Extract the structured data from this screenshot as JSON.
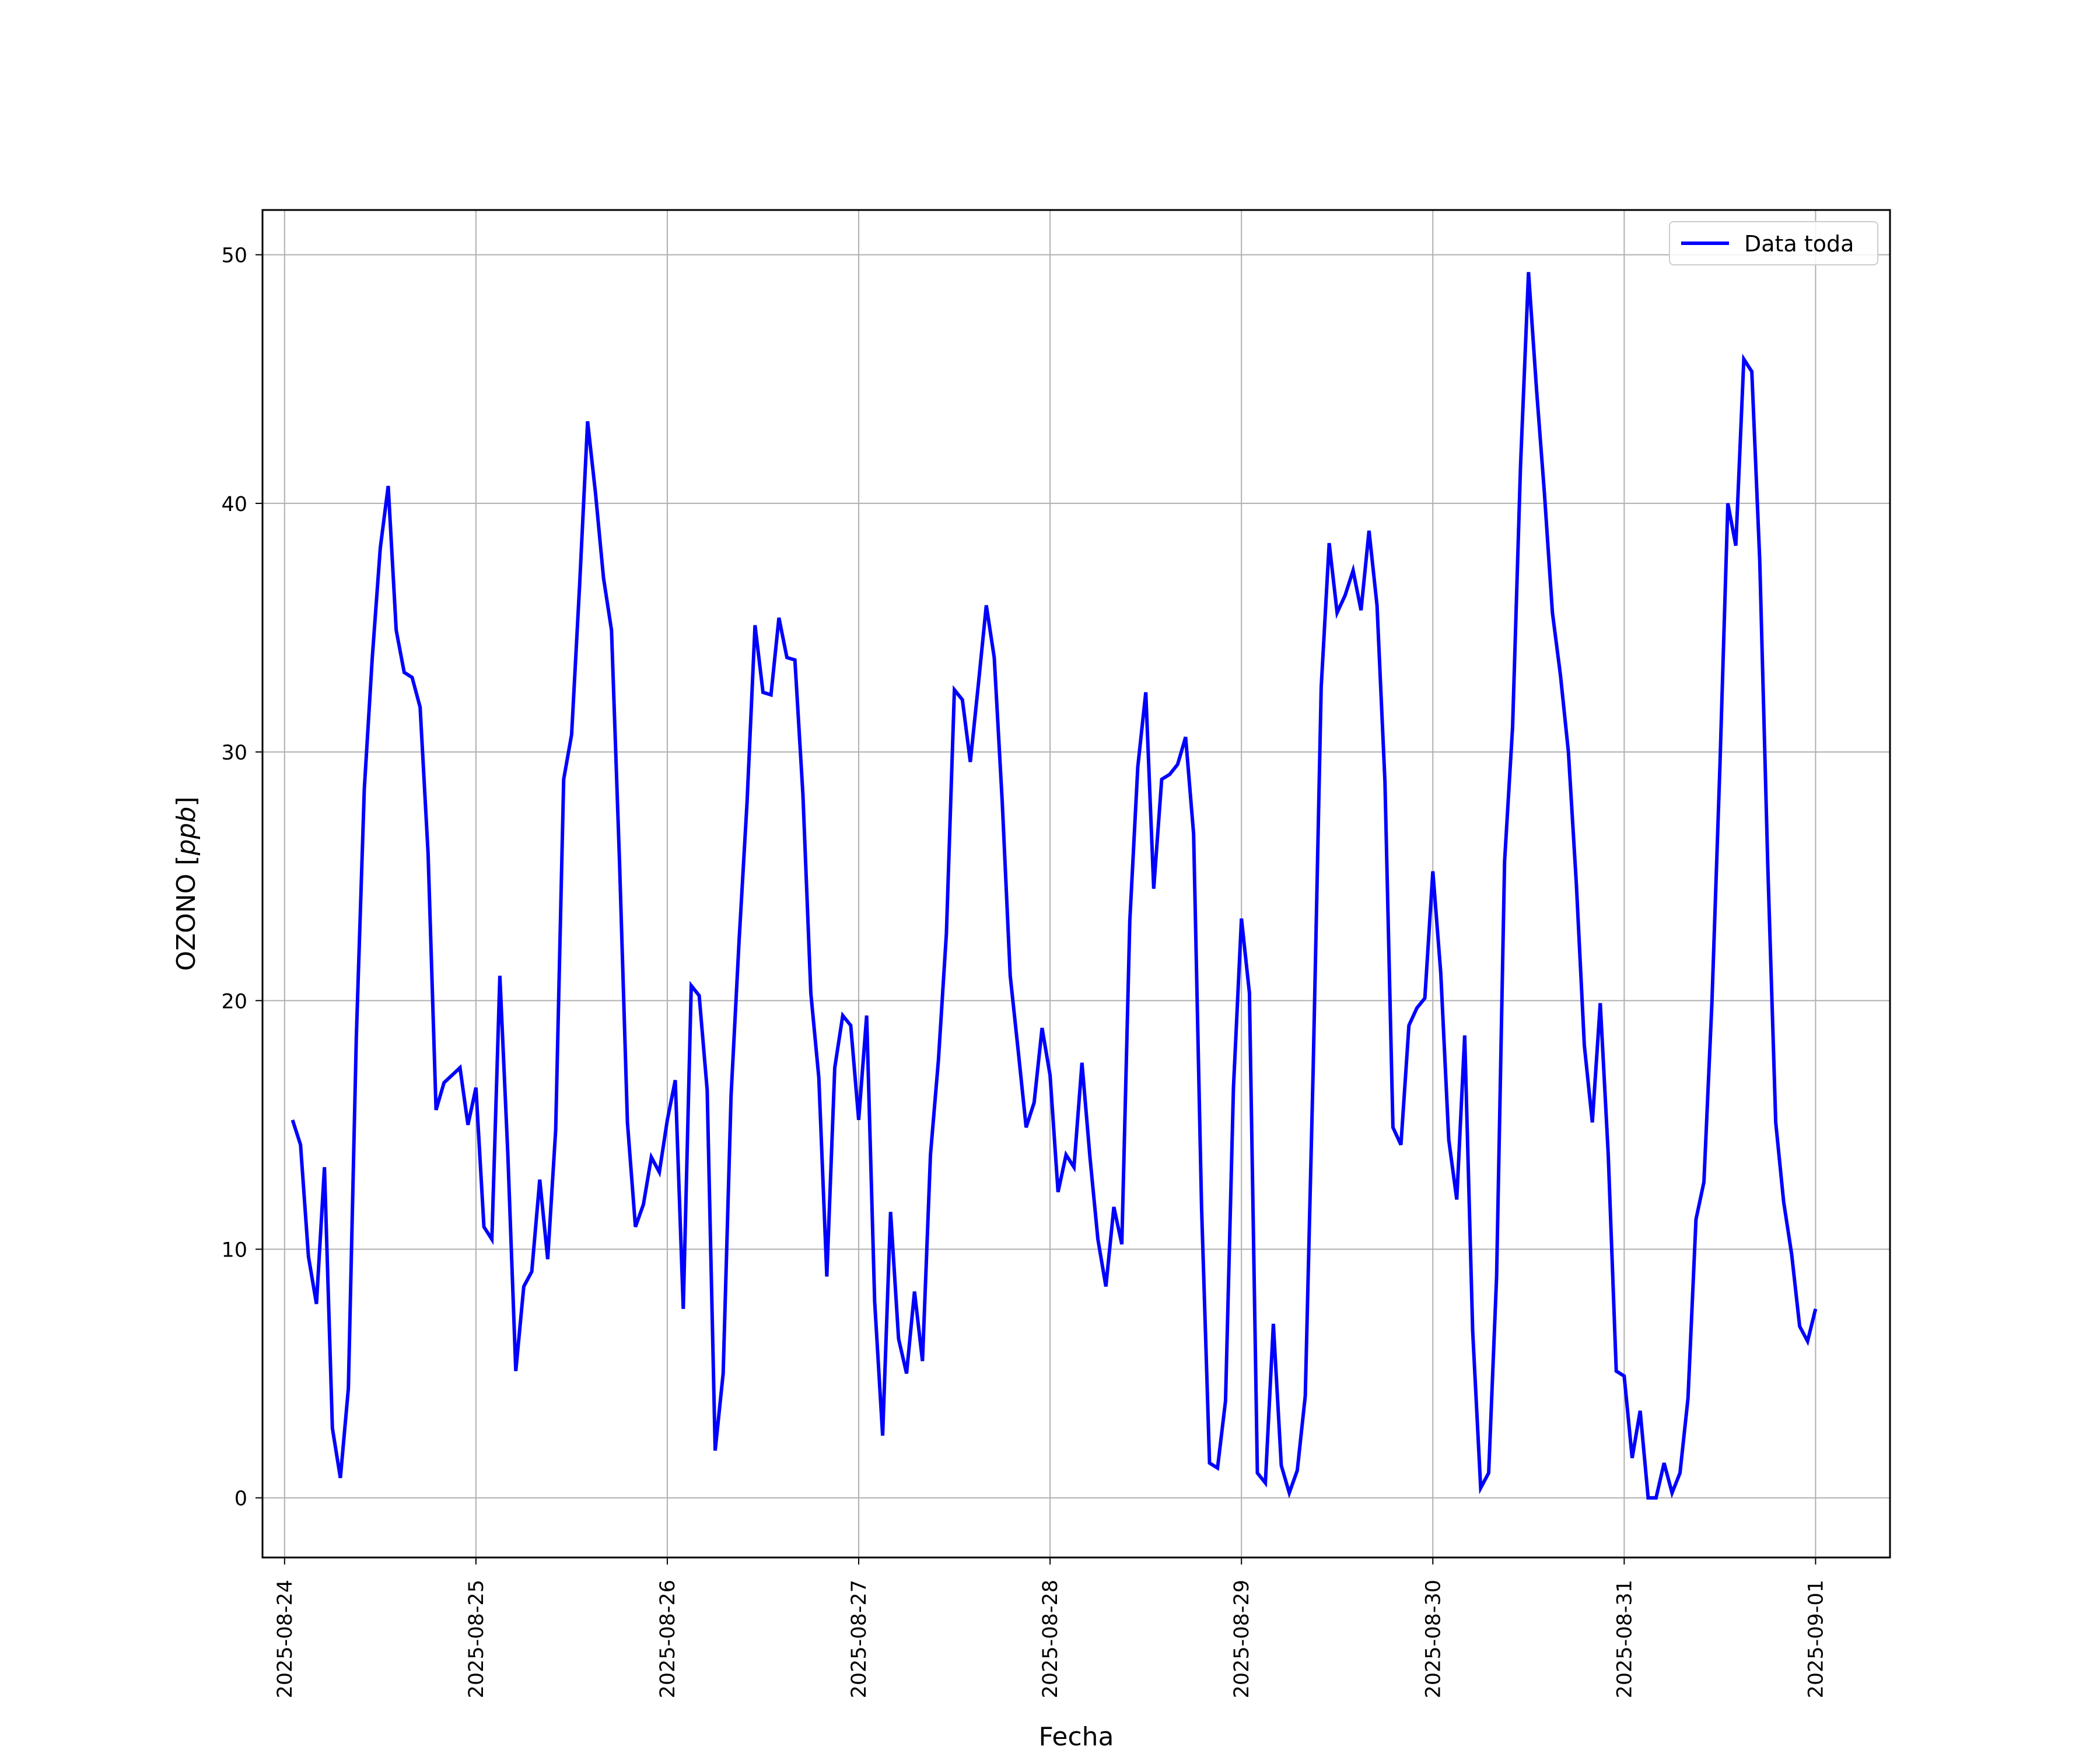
{
  "chart_data": {
    "type": "line",
    "xlabel": "Fecha",
    "ylabel": "OZONO [ppb]",
    "ylabel_text": "OZONO",
    "ylabel_unit": "ppb",
    "xlim": [
      "2025-08-23T21:14",
      "2025-09-01T09:20"
    ],
    "ylim": [
      -2.4,
      51.8
    ],
    "grid": true,
    "legend_position": "top-right",
    "x_ticks": [
      "2025-08-24",
      "2025-08-25",
      "2025-08-26",
      "2025-08-27",
      "2025-08-28",
      "2025-08-29",
      "2025-08-30",
      "2025-08-31",
      "2025-09-01"
    ],
    "y_ticks": [
      "0",
      "10",
      "20",
      "30",
      "40",
      "50"
    ],
    "y_tick_values": [
      0,
      10,
      20,
      30,
      40,
      50
    ],
    "series": [
      {
        "name": "Data toda",
        "color": "#0000ff",
        "x": [
          "2025-08-24T01:00",
          "2025-08-24T02:00",
          "2025-08-24T03:00",
          "2025-08-24T04:00",
          "2025-08-24T05:00",
          "2025-08-24T06:00",
          "2025-08-24T07:00",
          "2025-08-24T08:00",
          "2025-08-24T09:00",
          "2025-08-24T10:00",
          "2025-08-24T11:00",
          "2025-08-24T12:00",
          "2025-08-24T13:00",
          "2025-08-24T14:00",
          "2025-08-24T15:00",
          "2025-08-24T16:00",
          "2025-08-24T17:00",
          "2025-08-24T18:00",
          "2025-08-24T19:00",
          "2025-08-24T20:00",
          "2025-08-24T21:00",
          "2025-08-24T22:00",
          "2025-08-24T23:00",
          "2025-08-25T00:00",
          "2025-08-25T01:00",
          "2025-08-25T02:00",
          "2025-08-25T03:00",
          "2025-08-25T04:00",
          "2025-08-25T05:00",
          "2025-08-25T06:00",
          "2025-08-25T07:00",
          "2025-08-25T08:00",
          "2025-08-25T09:00",
          "2025-08-25T10:00",
          "2025-08-25T11:00",
          "2025-08-25T12:00",
          "2025-08-25T13:00",
          "2025-08-25T14:00",
          "2025-08-25T15:00",
          "2025-08-25T16:00",
          "2025-08-25T17:00",
          "2025-08-25T18:00",
          "2025-08-25T19:00",
          "2025-08-25T20:00",
          "2025-08-25T21:00",
          "2025-08-25T22:00",
          "2025-08-25T23:00",
          "2025-08-26T00:00",
          "2025-08-26T01:00",
          "2025-08-26T02:00",
          "2025-08-26T03:00",
          "2025-08-26T04:00",
          "2025-08-26T05:00",
          "2025-08-26T06:00",
          "2025-08-26T07:00",
          "2025-08-26T08:00",
          "2025-08-26T09:00",
          "2025-08-26T10:00",
          "2025-08-26T11:00",
          "2025-08-26T12:00",
          "2025-08-26T13:00",
          "2025-08-26T14:00",
          "2025-08-26T15:00",
          "2025-08-26T16:00",
          "2025-08-26T17:00",
          "2025-08-26T18:00",
          "2025-08-26T19:00",
          "2025-08-26T20:00",
          "2025-08-26T21:00",
          "2025-08-26T22:00",
          "2025-08-26T23:00",
          "2025-08-27T00:00",
          "2025-08-27T01:00",
          "2025-08-27T02:00",
          "2025-08-27T03:00",
          "2025-08-27T04:00",
          "2025-08-27T05:00",
          "2025-08-27T06:00",
          "2025-08-27T07:00",
          "2025-08-27T08:00",
          "2025-08-27T09:00",
          "2025-08-27T10:00",
          "2025-08-27T11:00",
          "2025-08-27T12:00",
          "2025-08-27T13:00",
          "2025-08-27T14:00",
          "2025-08-27T15:00",
          "2025-08-27T16:00",
          "2025-08-27T17:00",
          "2025-08-27T18:00",
          "2025-08-27T19:00",
          "2025-08-27T20:00",
          "2025-08-27T21:00",
          "2025-08-27T22:00",
          "2025-08-27T23:00",
          "2025-08-28T00:00",
          "2025-08-28T01:00",
          "2025-08-28T02:00",
          "2025-08-28T03:00",
          "2025-08-28T04:00",
          "2025-08-28T05:00",
          "2025-08-28T06:00",
          "2025-08-28T07:00",
          "2025-08-28T08:00",
          "2025-08-28T09:00",
          "2025-08-28T10:00",
          "2025-08-28T11:00",
          "2025-08-28T12:00",
          "2025-08-28T13:00",
          "2025-08-28T14:00",
          "2025-08-28T15:00",
          "2025-08-28T16:00",
          "2025-08-28T17:00",
          "2025-08-28T18:00",
          "2025-08-28T19:00",
          "2025-08-28T20:00",
          "2025-08-28T21:00",
          "2025-08-28T22:00",
          "2025-08-28T23:00",
          "2025-08-29T00:00",
          "2025-08-29T01:00",
          "2025-08-29T02:00",
          "2025-08-29T03:00",
          "2025-08-29T04:00",
          "2025-08-29T05:00",
          "2025-08-29T06:00",
          "2025-08-29T07:00",
          "2025-08-29T08:00",
          "2025-08-29T09:00",
          "2025-08-29T10:00",
          "2025-08-29T11:00",
          "2025-08-29T12:00",
          "2025-08-29T13:00",
          "2025-08-29T14:00",
          "2025-08-29T15:00",
          "2025-08-29T16:00",
          "2025-08-29T17:00",
          "2025-08-29T18:00",
          "2025-08-29T19:00",
          "2025-08-29T20:00",
          "2025-08-29T21:00",
          "2025-08-29T22:00",
          "2025-08-29T23:00",
          "2025-08-30T00:00",
          "2025-08-30T01:00",
          "2025-08-30T02:00",
          "2025-08-30T03:00",
          "2025-08-30T04:00",
          "2025-08-30T05:00",
          "2025-08-30T06:00",
          "2025-08-30T07:00",
          "2025-08-30T08:00",
          "2025-08-30T09:00",
          "2025-08-30T10:00",
          "2025-08-30T11:00",
          "2025-08-30T12:00",
          "2025-08-30T13:00",
          "2025-08-30T14:00",
          "2025-08-30T15:00",
          "2025-08-30T16:00",
          "2025-08-30T17:00",
          "2025-08-30T18:00",
          "2025-08-30T19:00",
          "2025-08-30T20:00",
          "2025-08-30T21:00",
          "2025-08-30T22:00",
          "2025-08-30T23:00",
          "2025-08-31T00:00",
          "2025-08-31T01:00",
          "2025-08-31T02:00",
          "2025-08-31T03:00",
          "2025-08-31T04:00",
          "2025-08-31T05:00",
          "2025-08-31T06:00",
          "2025-08-31T07:00",
          "2025-08-31T08:00",
          "2025-08-31T09:00",
          "2025-08-31T10:00",
          "2025-08-31T11:00",
          "2025-08-31T12:00",
          "2025-08-31T13:00",
          "2025-08-31T14:00",
          "2025-08-31T15:00",
          "2025-08-31T16:00",
          "2025-08-31T17:00",
          "2025-08-31T18:00",
          "2025-08-31T19:00",
          "2025-08-31T20:00",
          "2025-08-31T21:00",
          "2025-08-31T22:00",
          "2025-08-31T23:00",
          "2025-09-01T00:00"
        ],
        "values": [
          15.2,
          14.2,
          9.7,
          7.8,
          13.3,
          2.8,
          0.8,
          4.4,
          18.5,
          28.5,
          33.8,
          38.2,
          40.7,
          34.9,
          33.2,
          33.0,
          31.8,
          25.9,
          15.6,
          16.7,
          17.0,
          17.3,
          15.0,
          16.5,
          10.9,
          10.4,
          21.0,
          13.8,
          5.1,
          8.5,
          9.1,
          12.8,
          9.6,
          14.8,
          28.9,
          30.7,
          36.7,
          43.3,
          40.4,
          37.0,
          34.9,
          25.6,
          15.1,
          10.9,
          11.8,
          13.7,
          13.1,
          15.2,
          16.8,
          7.6,
          20.6,
          20.2,
          16.4,
          1.9,
          5.0,
          16.2,
          22.4,
          28.0,
          35.1,
          32.4,
          32.3,
          35.4,
          33.8,
          33.7,
          28.3,
          20.3,
          16.9,
          8.9,
          17.3,
          19.4,
          19.0,
          15.2,
          19.4,
          7.9,
          2.5,
          11.5,
          6.4,
          5.0,
          8.3,
          5.5,
          13.8,
          17.6,
          22.7,
          32.5,
          32.1,
          29.6,
          32.7,
          35.9,
          33.8,
          28.0,
          21.0,
          18.0,
          14.9,
          15.9,
          18.9,
          17.0,
          12.3,
          13.8,
          13.3,
          17.5,
          13.7,
          10.4,
          8.5,
          11.7,
          10.2,
          23.2,
          29.4,
          32.4,
          24.5,
          28.9,
          29.1,
          29.5,
          30.6,
          26.7,
          11.7,
          1.4,
          1.2,
          3.9,
          16.5,
          23.3,
          20.3,
          1.0,
          0.6,
          7.0,
          1.3,
          0.2,
          1.1,
          4.1,
          17.3,
          32.6,
          38.4,
          35.6,
          36.3,
          37.3,
          35.7,
          38.9,
          35.9,
          28.8,
          14.9,
          14.2,
          19.0,
          19.7,
          20.1,
          25.2,
          21.1,
          14.4,
          12.0,
          18.6,
          6.7,
          0.4,
          1.0,
          8.9,
          25.6,
          31.0,
          41.5,
          49.3,
          44.6,
          40.4,
          35.6,
          33.1,
          30.0,
          24.7,
          18.2,
          15.1,
          19.9,
          13.8,
          5.1,
          4.9,
          1.6,
          3.5,
          0.0,
          0.0,
          1.4,
          0.2,
          1.0,
          4.0,
          11.2,
          12.7,
          19.9,
          29.4,
          40.0,
          38.3,
          45.8,
          45.3,
          37.7,
          25.5,
          15.1,
          11.9,
          9.8,
          6.9,
          6.3,
          7.6
        ]
      }
    ]
  }
}
